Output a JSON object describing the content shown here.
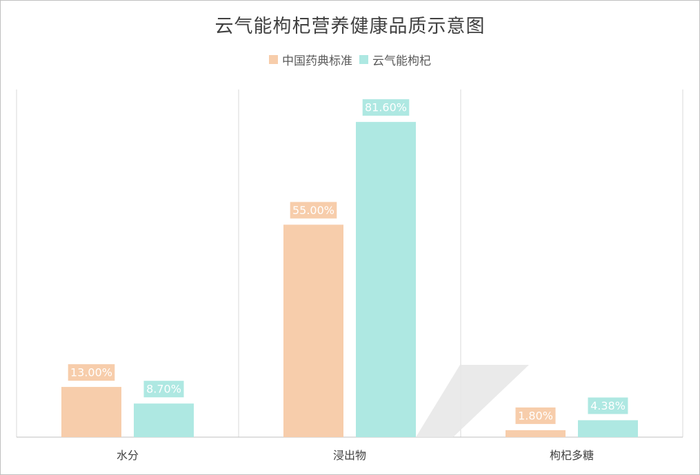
{
  "chart_data": {
    "type": "bar",
    "title": "云气能枸杞营养健康品质示意图",
    "categories": [
      "水分",
      "浸出物",
      "枸杞多糖"
    ],
    "series": [
      {
        "name": "中国药典标准",
        "values": [
          13.0,
          55.0,
          1.8
        ],
        "labels": [
          "13.00%",
          "55.00%",
          "1.80%"
        ],
        "color": "#f7cdab"
      },
      {
        "name": "云气能枸杞",
        "values": [
          8.7,
          81.6,
          4.38
        ],
        "labels": [
          "8.70%",
          "81.60%",
          "4.38%"
        ],
        "color": "#aee8e2"
      }
    ],
    "xlabel": "",
    "ylabel": "",
    "ylim": [
      0,
      90
    ],
    "grid": "vertical category separators",
    "legend_position": "top"
  }
}
